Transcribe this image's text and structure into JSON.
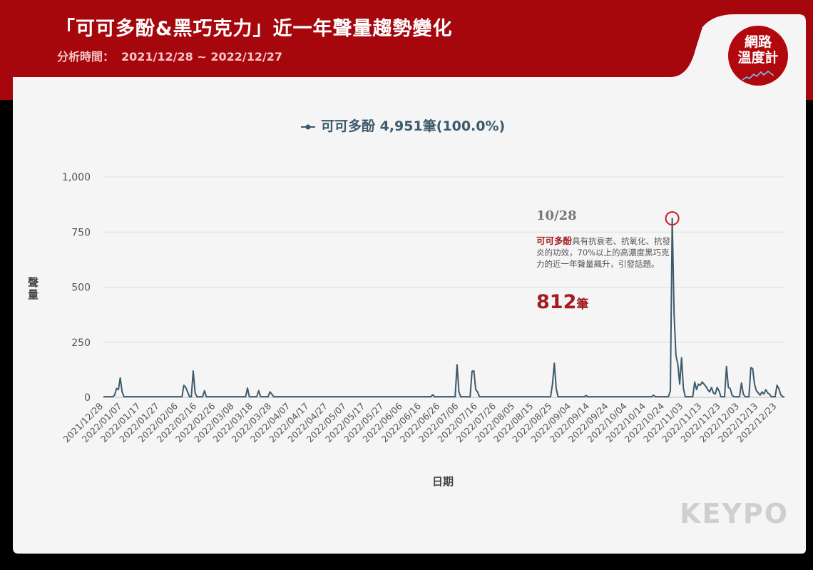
{
  "header": {
    "title": "「可可多酚&黑巧克力」近一年聲量趨勢變化",
    "period_label": "分析時間：",
    "period_value": "2021/12/28 ~ 2022/12/27"
  },
  "badge": {
    "line1": "網路",
    "line2": "溫度計"
  },
  "logo": "KEYPO",
  "colors": {
    "brand_red": "#a5070d",
    "series": "#3d5a6c",
    "annotation_red": "#a11b1f"
  },
  "chart_data": {
    "type": "line",
    "legend": "可可多酚 4,951筆(100.0%)",
    "xlabel": "日期",
    "ylabel": "聲量",
    "ylim": [
      0,
      1000
    ],
    "yticks": [
      "0",
      "250",
      "500",
      "750",
      "1,000"
    ],
    "x_start": "2021/12/28",
    "x_tick_labels": [
      "2021/12/28",
      "2022/01/07",
      "2022/01/17",
      "2022/01/27",
      "2022/02/06",
      "2022/02/16",
      "2022/02/26",
      "2022/03/08",
      "2022/03/18",
      "2022/03/28",
      "2022/04/07",
      "2022/04/17",
      "2022/04/27",
      "2022/05/07",
      "2022/05/17",
      "2022/05/27",
      "2022/06/06",
      "2022/06/16",
      "2022/06/26",
      "2022/07/06",
      "2022/07/16",
      "2022/07/26",
      "2022/08/05",
      "2022/08/15",
      "2022/08/25",
      "2022/09/04",
      "2022/09/14",
      "2022/09/24",
      "2022/10/04",
      "2022/10/14",
      "2022/10/24",
      "2022/11/03",
      "2022/11/13",
      "2022/11/23",
      "2022/12/03",
      "2022/12/13",
      "2022/12/23"
    ],
    "series": [
      {
        "name": "可可多酚",
        "peaks": [
          {
            "date": "2022/01/03",
            "value": 10
          },
          {
            "date": "2022/01/04",
            "value": 40
          },
          {
            "date": "2022/01/05",
            "value": 35
          },
          {
            "date": "2022/01/06",
            "value": 88
          },
          {
            "date": "2022/01/07",
            "value": 25
          },
          {
            "date": "2022/02/09",
            "value": 55
          },
          {
            "date": "2022/02/10",
            "value": 45
          },
          {
            "date": "2022/02/11",
            "value": 25
          },
          {
            "date": "2022/02/14",
            "value": 120
          },
          {
            "date": "2022/02/15",
            "value": 20
          },
          {
            "date": "2022/02/20",
            "value": 30
          },
          {
            "date": "2022/03/15",
            "value": 42
          },
          {
            "date": "2022/03/21",
            "value": 30
          },
          {
            "date": "2022/03/27",
            "value": 25
          },
          {
            "date": "2022/03/28",
            "value": 15
          },
          {
            "date": "2022/06/22",
            "value": 12
          },
          {
            "date": "2022/07/05",
            "value": 148
          },
          {
            "date": "2022/07/06",
            "value": 25
          },
          {
            "date": "2022/07/13",
            "value": 118
          },
          {
            "date": "2022/07/14",
            "value": 120
          },
          {
            "date": "2022/07/15",
            "value": 35
          },
          {
            "date": "2022/07/16",
            "value": 25
          },
          {
            "date": "2022/08/25",
            "value": 60
          },
          {
            "date": "2022/08/26",
            "value": 155
          },
          {
            "date": "2022/08/27",
            "value": 40
          },
          {
            "date": "2022/09/12",
            "value": 8
          },
          {
            "date": "2022/10/18",
            "value": 10
          },
          {
            "date": "2022/10/27",
            "value": 30
          },
          {
            "date": "2022/10/28",
            "value": 812
          },
          {
            "date": "2022/10/29",
            "value": 380
          },
          {
            "date": "2022/10/30",
            "value": 190
          },
          {
            "date": "2022/10/31",
            "value": 150
          },
          {
            "date": "2022/11/01",
            "value": 60
          },
          {
            "date": "2022/11/02",
            "value": 180
          },
          {
            "date": "2022/11/03",
            "value": 40
          },
          {
            "date": "2022/11/09",
            "value": 70
          },
          {
            "date": "2022/11/10",
            "value": 35
          },
          {
            "date": "2022/11/11",
            "value": 60
          },
          {
            "date": "2022/11/12",
            "value": 55
          },
          {
            "date": "2022/11/13",
            "value": 70
          },
          {
            "date": "2022/11/14",
            "value": 60
          },
          {
            "date": "2022/11/15",
            "value": 50
          },
          {
            "date": "2022/11/16",
            "value": 35
          },
          {
            "date": "2022/11/17",
            "value": 25
          },
          {
            "date": "2022/11/18",
            "value": 45
          },
          {
            "date": "2022/11/19",
            "value": 20
          },
          {
            "date": "2022/11/20",
            "value": 15
          },
          {
            "date": "2022/11/21",
            "value": 45
          },
          {
            "date": "2022/11/22",
            "value": 30
          },
          {
            "date": "2022/11/26",
            "value": 140
          },
          {
            "date": "2022/11/27",
            "value": 45
          },
          {
            "date": "2022/11/28",
            "value": 40
          },
          {
            "date": "2022/11/29",
            "value": 10
          },
          {
            "date": "2022/12/04",
            "value": 65
          },
          {
            "date": "2022/12/05",
            "value": 15
          },
          {
            "date": "2022/12/09",
            "value": 135
          },
          {
            "date": "2022/12/10",
            "value": 130
          },
          {
            "date": "2022/12/11",
            "value": 60
          },
          {
            "date": "2022/12/12",
            "value": 30
          },
          {
            "date": "2022/12/13",
            "value": 20
          },
          {
            "date": "2022/12/14",
            "value": 10
          },
          {
            "date": "2022/12/15",
            "value": 25
          },
          {
            "date": "2022/12/16",
            "value": 15
          },
          {
            "date": "2022/12/17",
            "value": 35
          },
          {
            "date": "2022/12/18",
            "value": 20
          },
          {
            "date": "2022/12/19",
            "value": 15
          },
          {
            "date": "2022/12/23",
            "value": 55
          },
          {
            "date": "2022/12/24",
            "value": 40
          },
          {
            "date": "2022/12/25",
            "value": 12
          }
        ]
      }
    ],
    "annotation": {
      "date": "10/28",
      "text_bold": "可可多酚",
      "text": "具有抗衰老、抗氧化、抗發炎的功效，70%以上的高濃度黑巧克力的近一年聲量飆升，引發話題。",
      "count": "812",
      "unit": "筆"
    }
  }
}
